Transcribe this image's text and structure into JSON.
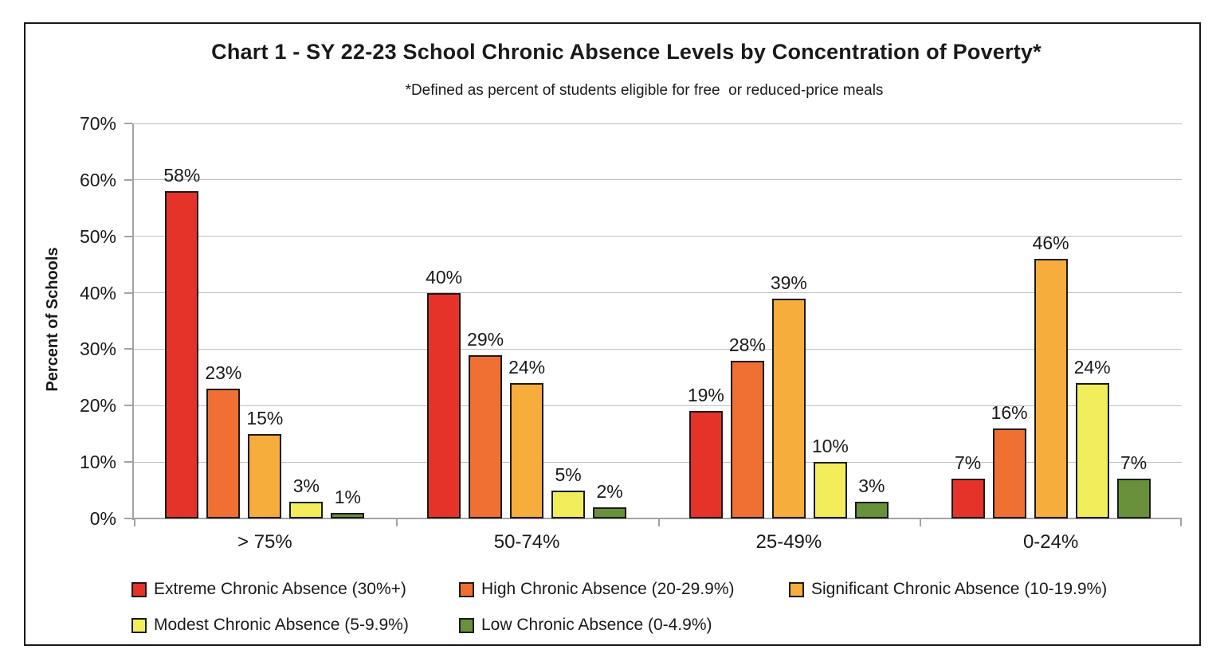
{
  "title": "Chart 1 - SY 22-23 School Chronic Absence Levels by Concentration of Poverty*",
  "subtitle": "*Defined as percent of students eligible for free  or reduced-price meals",
  "y_axis_title": "Percent of Schools",
  "chart_data": {
    "type": "bar",
    "title": "Chart 1 - SY 22-23 School Chronic Absence Levels by Concentration of Poverty*",
    "subtitle": "*Defined as percent of students eligible for free or reduced-price meals",
    "xlabel": "",
    "ylabel": "Percent of Schools",
    "ylim": [
      0,
      70
    ],
    "yticks": [
      0,
      10,
      20,
      30,
      40,
      50,
      60,
      70
    ],
    "ytick_labels": [
      "0%",
      "10%",
      "20%",
      "30%",
      "40%",
      "50%",
      "60%",
      "70%"
    ],
    "grid": "horizontal",
    "legend_position": "bottom",
    "value_labels": "percent-above-bar",
    "categories": [
      "> 75%",
      "50-74%",
      "25-49%",
      "0-24%"
    ],
    "series": [
      {
        "name": "Extreme Chronic Absence (30%+)",
        "color": "#E6332A",
        "values": [
          58,
          40,
          19,
          7
        ],
        "labels": [
          "58%",
          "40%",
          "19%",
          "7%"
        ]
      },
      {
        "name": "High Chronic Absence (20-29.9%)",
        "color": "#EF7032",
        "values": [
          23,
          29,
          28,
          16
        ],
        "labels": [
          "23%",
          "29%",
          "28%",
          "16%"
        ]
      },
      {
        "name": "Significant Chronic Absence (10-19.9%)",
        "color": "#F6AD3C",
        "values": [
          15,
          24,
          39,
          46
        ],
        "labels": [
          "15%",
          "24%",
          "39%",
          "46%"
        ]
      },
      {
        "name": "Modest Chronic Absence (5-9.9%)",
        "color": "#F2EE5B",
        "values": [
          3,
          5,
          10,
          24
        ],
        "labels": [
          "3%",
          "5%",
          "10%",
          "24%"
        ]
      },
      {
        "name": "Low Chronic Absence (0-4.9%)",
        "color": "#69913B",
        "values": [
          1,
          2,
          3,
          7
        ],
        "labels": [
          "1%",
          "2%",
          "3%",
          "7%"
        ]
      }
    ],
    "colors": {
      "bar_border": "#1a1a1a",
      "gridline": "#bfbfbf",
      "axis": "#a3a3a3",
      "text": "#1a1a1a",
      "frame_border": "#181818",
      "background": "#ffffff"
    }
  }
}
